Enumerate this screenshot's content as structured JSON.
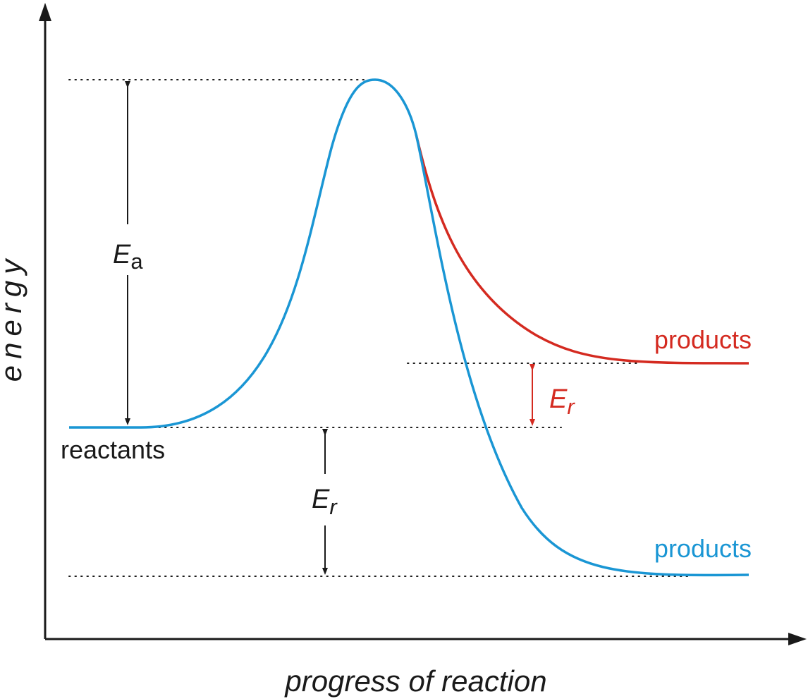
{
  "axes": {
    "x_label": "progress of reaction",
    "y_label": "energy"
  },
  "labels": {
    "reactants": "reactants",
    "products_endothermic": "products",
    "products_exothermic": "products",
    "activation_energy": {
      "symbol": "E",
      "subscript": "a"
    },
    "reaction_energy_endothermic": {
      "symbol": "E",
      "subscript": "r"
    },
    "reaction_energy_exothermic": {
      "symbol": "E",
      "subscript": "r"
    }
  },
  "colors": {
    "axis": "#1a1a1a",
    "exothermic_curve": "#1a96d4",
    "endothermic_curve": "#d42a20",
    "text": "#1a1a1a",
    "endothermic_label": "#d42a20",
    "exothermic_label": "#1a96d4"
  }
}
